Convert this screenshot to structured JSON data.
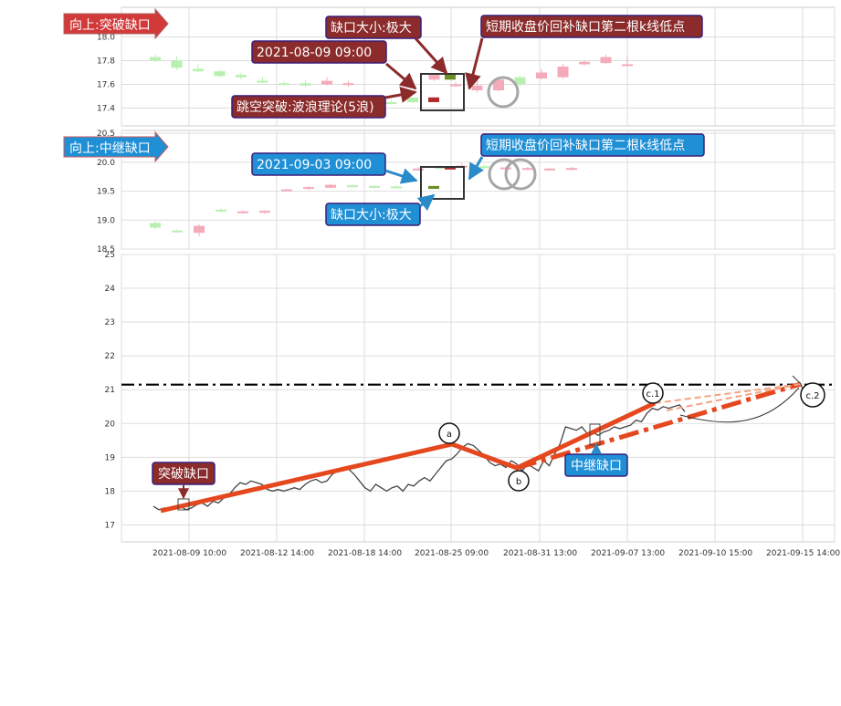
{
  "chart_data": [
    {
      "type": "candlestick",
      "ylim": [
        17.25,
        18.25
      ],
      "yticks": [
        17.4,
        17.6,
        17.8,
        18.0
      ],
      "grid": true,
      "colors": {
        "up": "#f4aab9",
        "down": "#b8f0b0",
        "box": "#333333",
        "arrow": "#8b2b2b",
        "ann_fill": "#8b2b2b",
        "ann_border": "#3b1f7a"
      },
      "candles": [
        {
          "o": 17.83,
          "h": 17.85,
          "l": 17.79,
          "c": 17.8
        },
        {
          "o": 17.8,
          "h": 17.84,
          "l": 17.72,
          "c": 17.74
        },
        {
          "o": 17.73,
          "h": 17.77,
          "l": 17.7,
          "c": 17.71
        },
        {
          "o": 17.71,
          "h": 17.72,
          "l": 17.66,
          "c": 17.67
        },
        {
          "o": 17.68,
          "h": 17.7,
          "l": 17.64,
          "c": 17.66
        },
        {
          "o": 17.63,
          "h": 17.66,
          "l": 17.61,
          "c": 17.62
        },
        {
          "o": 17.61,
          "h": 17.63,
          "l": 17.59,
          "c": 17.6
        },
        {
          "o": 17.61,
          "h": 17.64,
          "l": 17.58,
          "c": 17.59
        },
        {
          "o": 17.6,
          "h": 17.66,
          "l": 17.59,
          "c": 17.63
        },
        {
          "o": 17.6,
          "h": 17.63,
          "l": 17.58,
          "c": 17.61
        },
        {
          "o": 17.42,
          "h": 17.46,
          "l": 17.41,
          "c": 17.45
        },
        {
          "o": 17.45,
          "h": 17.47,
          "l": 17.43,
          "c": 17.44
        },
        {
          "o": 17.49,
          "h": 17.49,
          "l": 17.44,
          "c": 17.45
        },
        {
          "o": 17.64,
          "h": 17.69,
          "l": 17.63,
          "c": 17.68
        },
        {
          "o": 17.6,
          "h": 17.62,
          "l": 17.58,
          "c": 17.6
        },
        {
          "o": 17.55,
          "h": 17.66,
          "l": 17.53,
          "c": 17.59
        },
        {
          "o": 17.55,
          "h": 17.66,
          "l": 17.54,
          "c": 17.64
        },
        {
          "o": 17.66,
          "h": 17.67,
          "l": 17.58,
          "c": 17.6
        },
        {
          "o": 17.65,
          "h": 17.73,
          "l": 17.64,
          "c": 17.7
        },
        {
          "o": 17.66,
          "h": 17.77,
          "l": 17.65,
          "c": 17.75
        },
        {
          "o": 17.77,
          "h": 17.8,
          "l": 17.76,
          "c": 17.79
        },
        {
          "o": 17.78,
          "h": 17.85,
          "l": 17.77,
          "c": 17.83
        },
        {
          "o": 17.76,
          "h": 17.84,
          "l": 17.75,
          "c": 17.77
        }
      ],
      "annotations": {
        "banner": "向上:突破缺口",
        "date_label": "2021-08-09 09:00",
        "gap_size": "缺口大小:极大",
        "wave_theory": "跳空突破:波浪理论(5浪)",
        "fill_point": "短期收盘价回补缺口第二根k线低点"
      }
    },
    {
      "type": "candlestick",
      "ylim": [
        18.5,
        20.55
      ],
      "yticks": [
        18.5,
        19.0,
        19.5,
        20.0,
        20.5
      ],
      "tick_labels": [
        "18.5",
        "19.0",
        "19.5",
        "20.0",
        "20.5"
      ],
      "grid": true,
      "colors": {
        "up": "#f4aab9",
        "down": "#b8f0b0",
        "box": "#333333",
        "arrow": "#2a8bc8",
        "ann_fill": "#1f8fd6",
        "ann_border": "#3b1f7a"
      },
      "candles": [
        {
          "o": 18.95,
          "h": 18.98,
          "l": 18.84,
          "c": 18.87
        },
        {
          "o": 18.82,
          "h": 18.84,
          "l": 18.79,
          "c": 18.8
        },
        {
          "o": 18.78,
          "h": 18.93,
          "l": 18.72,
          "c": 18.9
        },
        {
          "o": 19.18,
          "h": 19.2,
          "l": 19.14,
          "c": 19.15
        },
        {
          "o": 19.14,
          "h": 19.17,
          "l": 19.12,
          "c": 19.15
        },
        {
          "o": 19.13,
          "h": 19.17,
          "l": 19.11,
          "c": 19.16
        },
        {
          "o": 19.52,
          "h": 19.54,
          "l": 19.5,
          "c": 19.53
        },
        {
          "o": 19.54,
          "h": 19.59,
          "l": 19.53,
          "c": 19.57
        },
        {
          "o": 19.56,
          "h": 19.63,
          "l": 19.55,
          "c": 19.61
        },
        {
          "o": 19.6,
          "h": 19.61,
          "l": 19.58,
          "c": 19.59
        },
        {
          "o": 19.59,
          "h": 19.6,
          "l": 19.55,
          "c": 19.56
        },
        {
          "o": 19.58,
          "h": 19.6,
          "l": 19.56,
          "c": 19.57
        },
        {
          "o": 19.89,
          "h": 19.92,
          "l": 19.86,
          "c": 19.89
        },
        {
          "o": 19.92,
          "h": 19.95,
          "l": 19.9,
          "c": 19.91
        },
        {
          "o": 19.92,
          "h": 19.98,
          "l": 19.9,
          "c": 19.94
        },
        {
          "o": 19.93,
          "h": 19.96,
          "l": 19.88,
          "c": 19.9
        },
        {
          "o": 19.9,
          "h": 19.93,
          "l": 19.88,
          "c": 19.91
        },
        {
          "o": 19.89,
          "h": 19.92,
          "l": 19.86,
          "c": 19.9
        },
        {
          "o": 19.88,
          "h": 19.9,
          "l": 19.87,
          "c": 19.89
        },
        {
          "o": 19.89,
          "h": 19.92,
          "l": 19.86,
          "c": 19.9
        }
      ],
      "annotations": {
        "banner": "向上:中继缺口",
        "date_label": "2021-09-03 09:00",
        "gap_size": "缺口大小:极大",
        "fill_point": "短期收盘价回补缺口第二根k线低点"
      }
    },
    {
      "type": "line",
      "ylim": [
        16.5,
        25
      ],
      "yticks": [
        17,
        18,
        19,
        20,
        21,
        22,
        23,
        24,
        25
      ],
      "x_tick_labels": [
        "2021-08-09 10:00",
        "2021-08-12 14:00",
        "2021-08-18 14:00",
        "2021-08-25 09:00",
        "2021-08-31 13:00",
        "2021-09-07 13:00",
        "2021-09-10 15:00",
        "2021-09-15 14:00"
      ],
      "grid": true,
      "resistance_level": 21.15,
      "price_series": [
        17.55,
        17.45,
        17.5,
        17.48,
        17.5,
        17.55,
        17.45,
        17.5,
        17.6,
        17.65,
        17.55,
        17.7,
        17.65,
        17.8,
        17.9,
        18.1,
        18.25,
        18.2,
        18.3,
        18.25,
        18.2,
        18.05,
        18.0,
        18.05,
        18.0,
        18.05,
        18.1,
        18.05,
        18.2,
        18.3,
        18.35,
        18.25,
        18.3,
        18.5,
        18.6,
        18.7,
        18.65,
        18.5,
        18.3,
        18.1,
        18.0,
        18.2,
        18.1,
        18.0,
        18.1,
        18.15,
        18.0,
        18.2,
        18.15,
        18.3,
        18.4,
        18.3,
        18.5,
        18.7,
        18.9,
        18.95,
        19.1,
        19.3,
        19.4,
        19.35,
        19.2,
        19.05,
        18.85,
        18.75,
        18.8,
        18.7,
        18.9,
        18.8,
        18.6,
        18.8,
        18.7,
        18.6,
        18.9,
        18.75,
        19.1,
        19.4,
        19.9,
        19.85,
        19.8,
        19.9,
        19.7,
        19.75,
        19.65,
        19.75,
        19.8,
        19.9,
        19.85,
        19.9,
        19.95,
        20.1,
        20.05,
        20.3,
        20.45,
        20.4,
        20.5,
        20.45,
        20.5,
        20.55,
        20.35
      ],
      "colors": {
        "price": "#444444",
        "wave": "#e5481e",
        "projection": "#f4a384",
        "resistance": "#000000",
        "curve": "#333333"
      },
      "wave_labels": [
        "a",
        "b",
        "c.1",
        "c.2"
      ],
      "annotations": {
        "breakout_gap": "突破缺口",
        "continuation_gap": "中继缺口"
      }
    }
  ]
}
